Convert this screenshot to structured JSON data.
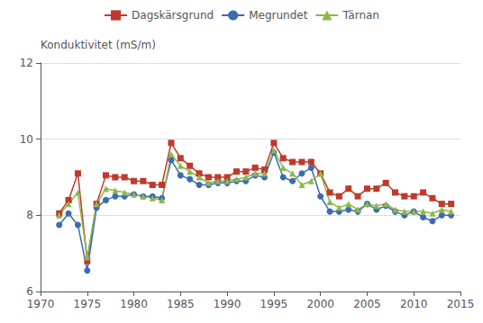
{
  "chart_data": {
    "type": "line",
    "ylabel": "Konduktivitet (mS/m)",
    "x": [
      1972,
      1973,
      1974,
      1975,
      1976,
      1977,
      1978,
      1979,
      1980,
      1981,
      1982,
      1983,
      1984,
      1985,
      1986,
      1987,
      1988,
      1989,
      1990,
      1991,
      1992,
      1993,
      1994,
      1995,
      1996,
      1997,
      1998,
      1999,
      2000,
      2001,
      2002,
      2003,
      2004,
      2005,
      2006,
      2007,
      2008,
      2009,
      2010,
      2011,
      2012,
      2013,
      2014
    ],
    "series": [
      {
        "name": "Dagskärsgrund",
        "color": "#C0392B",
        "marker": "square",
        "values": [
          8.05,
          8.4,
          9.1,
          6.8,
          8.3,
          9.05,
          9.0,
          9.0,
          8.9,
          8.9,
          8.8,
          8.8,
          9.9,
          9.5,
          9.3,
          9.1,
          9.0,
          9.0,
          9.0,
          9.15,
          9.15,
          9.25,
          9.2,
          9.9,
          9.5,
          9.4,
          9.4,
          9.4,
          9.1,
          8.6,
          8.5,
          8.7,
          8.5,
          8.7,
          8.7,
          8.85,
          8.6,
          8.5,
          8.5,
          8.6,
          8.45,
          8.3,
          8.3
        ]
      },
      {
        "name": "Megrundet",
        "color": "#3B6BB5",
        "marker": "circle",
        "values": [
          7.75,
          8.05,
          7.75,
          6.55,
          8.2,
          8.4,
          8.5,
          8.5,
          8.55,
          8.5,
          8.5,
          8.45,
          9.45,
          9.05,
          8.95,
          8.8,
          8.8,
          8.85,
          8.85,
          8.9,
          8.9,
          9.05,
          9.0,
          9.65,
          9.0,
          8.9,
          9.1,
          9.25,
          8.5,
          8.1,
          8.1,
          8.15,
          8.1,
          8.3,
          8.15,
          8.25,
          8.1,
          8.0,
          8.1,
          7.95,
          7.85,
          8.0,
          8.0
        ]
      },
      {
        "name": "Tärnan",
        "color": "#8DB84A",
        "marker": "triangle",
        "values": [
          8.0,
          8.3,
          8.6,
          6.9,
          8.3,
          8.7,
          8.65,
          8.6,
          8.55,
          8.5,
          8.45,
          8.4,
          9.6,
          9.3,
          9.15,
          9.0,
          8.85,
          8.9,
          8.9,
          8.95,
          9.0,
          9.1,
          9.1,
          9.7,
          9.25,
          9.1,
          8.8,
          8.9,
          9.1,
          8.35,
          8.2,
          8.3,
          8.15,
          8.3,
          8.25,
          8.3,
          8.15,
          8.1,
          8.1,
          8.1,
          8.05,
          8.15,
          8.1
        ]
      }
    ],
    "xlim": [
      1970,
      2015
    ],
    "xticks": [
      1970,
      1975,
      1980,
      1985,
      1990,
      1995,
      2000,
      2005,
      2010,
      2015
    ],
    "ylim": [
      6,
      12
    ],
    "yticks": [
      6,
      8,
      10,
      12
    ],
    "grid": true,
    "legend": "top"
  }
}
